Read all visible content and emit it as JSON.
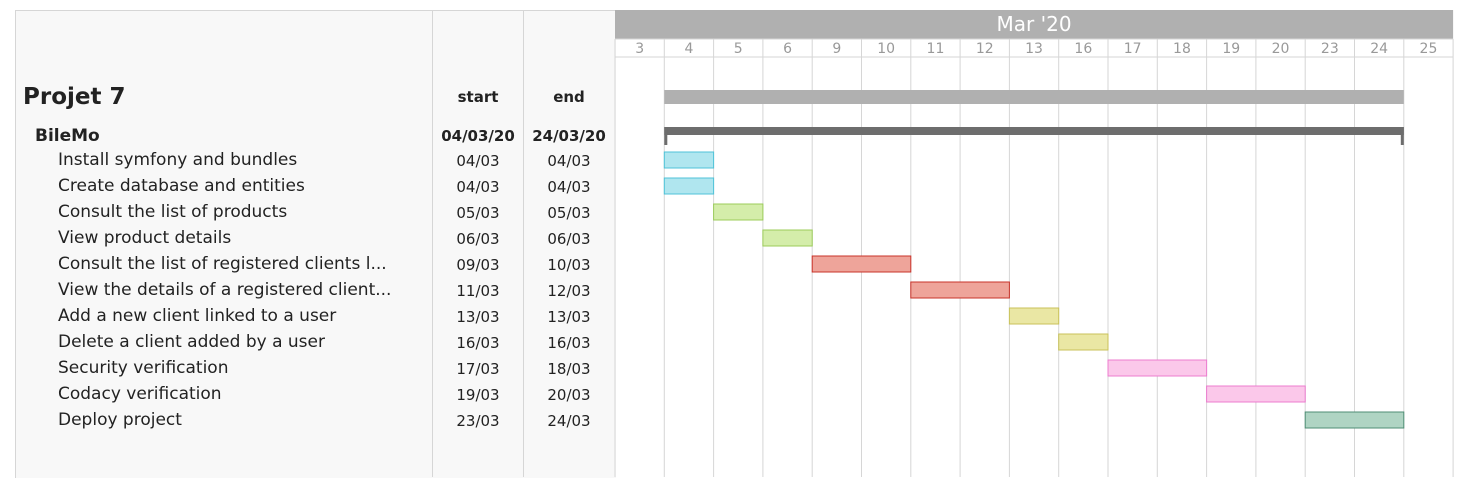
{
  "table": {
    "project_name": "Projet 7",
    "start_header": "start",
    "end_header": "end",
    "group": {
      "name": "BileMo",
      "start": "04/03/20",
      "end": "24/03/20"
    }
  },
  "chart_data": {
    "type": "gantt",
    "month_label": "Mar '20",
    "days": [
      "3",
      "4",
      "5",
      "6",
      "9",
      "10",
      "11",
      "12",
      "13",
      "16",
      "17",
      "18",
      "19",
      "20",
      "23",
      "24",
      "25"
    ],
    "project": {
      "start": "2020-03-04",
      "end": "2020-03-24"
    },
    "tasks": [
      {
        "name": "Install symfony and bundles",
        "start": "04/03",
        "end": "04/03",
        "start_day": "4",
        "end_day": "4",
        "color": "#b0e6ef",
        "border": "#4fc3d8"
      },
      {
        "name": "Create database and entities",
        "start": "04/03",
        "end": "04/03",
        "start_day": "4",
        "end_day": "4",
        "color": "#b0e6ef",
        "border": "#4fc3d8"
      },
      {
        "name": "Consult the list of products",
        "start": "05/03",
        "end": "05/03",
        "start_day": "5",
        "end_day": "5",
        "color": "#d4edaa",
        "border": "#9ccc5a"
      },
      {
        "name": "View product details",
        "start": "06/03",
        "end": "06/03",
        "start_day": "6",
        "end_day": "6",
        "color": "#d4edaa",
        "border": "#9ccc5a"
      },
      {
        "name": "Consult the list of registered clients l...",
        "start": "09/03",
        "end": "10/03",
        "start_day": "9",
        "end_day": "10",
        "color": "#eea49a",
        "border": "#c8332a"
      },
      {
        "name": "View the details of a registered client...",
        "start": "11/03",
        "end": "12/03",
        "start_day": "11",
        "end_day": "12",
        "color": "#eea49a",
        "border": "#c8332a"
      },
      {
        "name": "Add a new client linked to a user",
        "start": "13/03",
        "end": "13/03",
        "start_day": "13",
        "end_day": "13",
        "color": "#eae7a4",
        "border": "#c9c25a"
      },
      {
        "name": "Delete a client added by a user",
        "start": "16/03",
        "end": "16/03",
        "start_day": "16",
        "end_day": "16",
        "color": "#eae7a4",
        "border": "#c9c25a"
      },
      {
        "name": "Security verification",
        "start": "17/03",
        "end": "18/03",
        "start_day": "17",
        "end_day": "18",
        "color": "#fbc8ea",
        "border": "#ec7ccf"
      },
      {
        "name": "Codacy verification",
        "start": "19/03",
        "end": "20/03",
        "start_day": "19",
        "end_day": "20",
        "color": "#fbc8ea",
        "border": "#ec7ccf"
      },
      {
        "name": "Deploy project",
        "start": "23/03",
        "end": "24/03",
        "start_day": "23",
        "end_day": "24",
        "color": "#afd4c3",
        "border": "#4f8e74"
      }
    ],
    "colors": {
      "header_bg": "#b0b0b0",
      "project_bar": "#b0b0b0",
      "group_bar": "#6d6d6d",
      "grid": "#d6d6d6"
    }
  }
}
